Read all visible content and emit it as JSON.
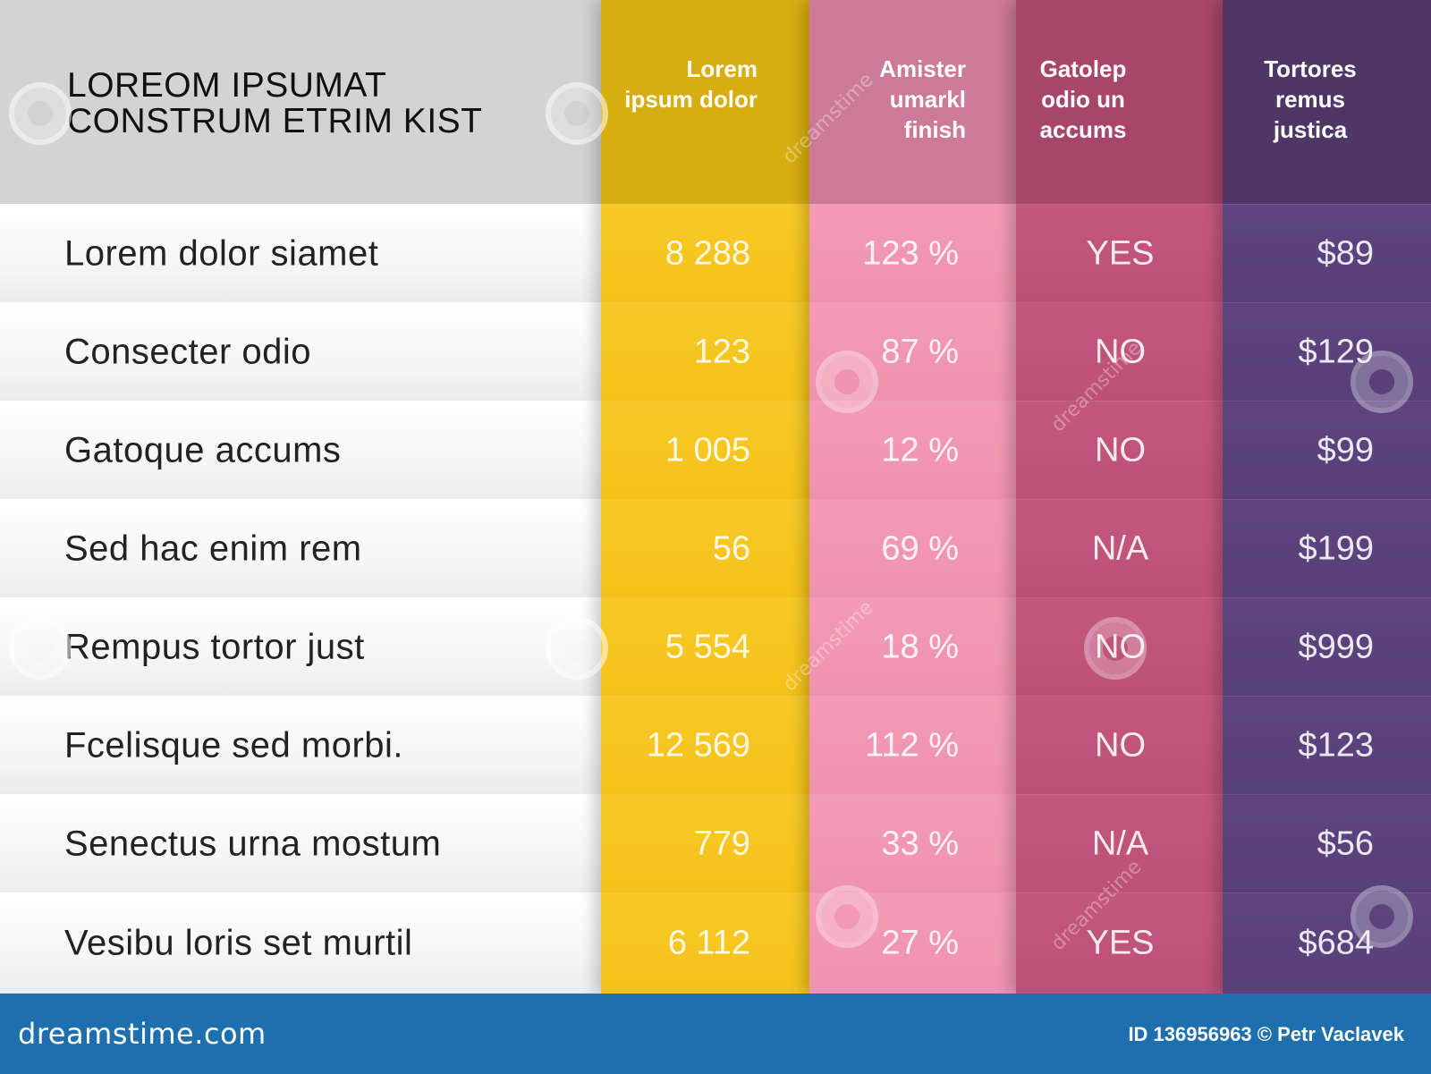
{
  "title": "LOREOM IPSUMAT CONSTRUM ETRIM KIST",
  "columns": [
    {
      "label": "Lorem ipsum dolor",
      "color": "#f4c21a"
    },
    {
      "label": "Amister umarkl finish",
      "color": "#ef92b0"
    },
    {
      "label": "Gatolep odio un accums",
      "color": "#bd5077"
    },
    {
      "label": "Tortores remus justica",
      "color": "#583f79"
    }
  ],
  "rows": [
    {
      "label": "Lorem dolor siamet",
      "values": [
        "8 288",
        "123 %",
        "YES",
        "$89"
      ]
    },
    {
      "label": "Consecter odio",
      "values": [
        "123",
        "87 %",
        "NO",
        "$129"
      ]
    },
    {
      "label": "Gatoque accums",
      "values": [
        "1 005",
        "12 %",
        "NO",
        "$99"
      ]
    },
    {
      "label": "Sed hac enim rem",
      "values": [
        "56",
        "69 %",
        "N/A",
        "$199"
      ]
    },
    {
      "label": "Rempus tortor just",
      "values": [
        "5 554",
        "18 %",
        "NO",
        "$999"
      ]
    },
    {
      "label": "Fcelisque sed morbi.",
      "values": [
        "12 569",
        "112 %",
        "NO",
        "$123"
      ]
    },
    {
      "label": "Senectus urna mostum",
      "values": [
        "779",
        "33 %",
        "N/A",
        "$56"
      ]
    },
    {
      "label": "Vesibu loris set murtil",
      "values": [
        "6 112",
        "27 %",
        "YES",
        "$684"
      ]
    }
  ],
  "footer": {
    "brand": "dreamstime.com",
    "credit": "ID 136956963 © Petr Vaclavek",
    "color": "#1e6fae"
  },
  "watermark": "dreamstime"
}
